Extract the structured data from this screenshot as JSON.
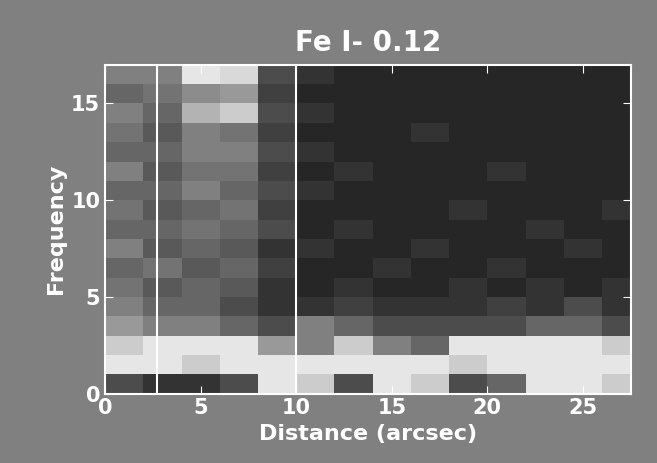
{
  "chart_data": {
    "type": "heatmap",
    "title": "Fe I- 0.12",
    "x_label": "Distance (arcsec)",
    "y_label": "Frequency",
    "xlim": [
      0,
      27.5
    ],
    "ylim": [
      0,
      17
    ],
    "xticks": [
      0,
      5,
      10,
      15,
      20,
      25
    ],
    "yticks": [
      0,
      5,
      10,
      15
    ],
    "vertical_lines": [
      2.7,
      10
    ],
    "value_range": [
      0,
      1
    ],
    "x_edges": [
      0,
      2,
      4,
      6,
      8,
      10,
      12,
      14,
      16,
      18,
      20,
      22,
      24,
      26,
      28
    ],
    "y_edges": [
      0,
      1,
      2,
      3,
      4,
      5,
      6,
      7,
      8,
      9,
      10,
      11,
      12,
      13,
      14,
      15,
      16,
      17
    ],
    "cells": [
      [
        0.3,
        0.2,
        0.2,
        0.3,
        0.9,
        0.8,
        0.3,
        0.9,
        0.8,
        0.3,
        0.4,
        0.9,
        0.9,
        0.8
      ],
      [
        0.9,
        0.9,
        0.8,
        0.9,
        0.9,
        0.9,
        0.9,
        0.9,
        0.9,
        0.8,
        0.9,
        0.9,
        0.9,
        0.9
      ],
      [
        0.8,
        0.9,
        0.9,
        0.9,
        0.6,
        0.5,
        0.8,
        0.5,
        0.4,
        0.9,
        0.9,
        0.9,
        0.9,
        0.8
      ],
      [
        0.6,
        0.5,
        0.5,
        0.4,
        0.3,
        0.5,
        0.4,
        0.3,
        0.3,
        0.3,
        0.3,
        0.4,
        0.4,
        0.3
      ],
      [
        0.5,
        0.4,
        0.4,
        0.3,
        0.2,
        0.2,
        0.25,
        0.2,
        0.2,
        0.2,
        0.25,
        0.2,
        0.3,
        0.2
      ],
      [
        0.45,
        0.35,
        0.4,
        0.35,
        0.2,
        0.15,
        0.2,
        0.15,
        0.15,
        0.2,
        0.15,
        0.2,
        0.15,
        0.2
      ],
      [
        0.4,
        0.45,
        0.35,
        0.4,
        0.25,
        0.15,
        0.15,
        0.2,
        0.15,
        0.15,
        0.2,
        0.15,
        0.15,
        0.15
      ],
      [
        0.5,
        0.35,
        0.4,
        0.35,
        0.2,
        0.2,
        0.15,
        0.15,
        0.2,
        0.15,
        0.15,
        0.15,
        0.2,
        0.15
      ],
      [
        0.4,
        0.4,
        0.45,
        0.4,
        0.3,
        0.15,
        0.2,
        0.15,
        0.15,
        0.15,
        0.15,
        0.2,
        0.15,
        0.15
      ],
      [
        0.45,
        0.35,
        0.4,
        0.45,
        0.25,
        0.15,
        0.15,
        0.15,
        0.15,
        0.2,
        0.15,
        0.15,
        0.15,
        0.2
      ],
      [
        0.4,
        0.4,
        0.5,
        0.4,
        0.3,
        0.2,
        0.15,
        0.15,
        0.15,
        0.15,
        0.15,
        0.15,
        0.15,
        0.15
      ],
      [
        0.5,
        0.35,
        0.45,
        0.45,
        0.25,
        0.15,
        0.2,
        0.15,
        0.15,
        0.15,
        0.2,
        0.15,
        0.15,
        0.15
      ],
      [
        0.4,
        0.4,
        0.5,
        0.5,
        0.3,
        0.2,
        0.15,
        0.15,
        0.15,
        0.15,
        0.15,
        0.15,
        0.15,
        0.15
      ],
      [
        0.45,
        0.35,
        0.5,
        0.45,
        0.25,
        0.15,
        0.15,
        0.15,
        0.2,
        0.15,
        0.15,
        0.15,
        0.15,
        0.15
      ],
      [
        0.5,
        0.4,
        0.7,
        0.8,
        0.3,
        0.2,
        0.15,
        0.15,
        0.15,
        0.15,
        0.15,
        0.15,
        0.15,
        0.15
      ],
      [
        0.4,
        0.45,
        0.55,
        0.6,
        0.25,
        0.15,
        0.15,
        0.15,
        0.15,
        0.15,
        0.15,
        0.15,
        0.15,
        0.15
      ],
      [
        0.5,
        0.5,
        0.9,
        0.85,
        0.3,
        0.2,
        0.15,
        0.15,
        0.15,
        0.15,
        0.15,
        0.15,
        0.15,
        0.15
      ]
    ]
  }
}
